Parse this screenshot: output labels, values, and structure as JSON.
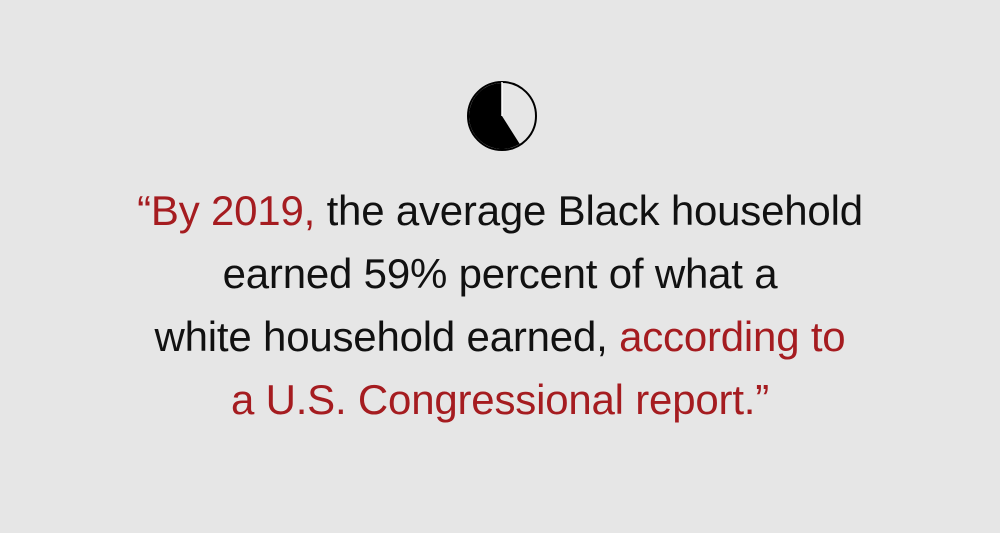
{
  "colors": {
    "background": "#e6e6e6",
    "text": "#111111",
    "accent": "#a51c20"
  },
  "icon": {
    "name": "pie-fraction-icon",
    "value_percent": 59
  },
  "quote": {
    "line1_highlight": "“By 2019,",
    "line1_rest": " the average Black household",
    "line2": "earned 59% percent of what a",
    "line3_start": "white household earned, ",
    "line3_highlight": "according to",
    "line4": "a U.S. Congressional report.”"
  }
}
